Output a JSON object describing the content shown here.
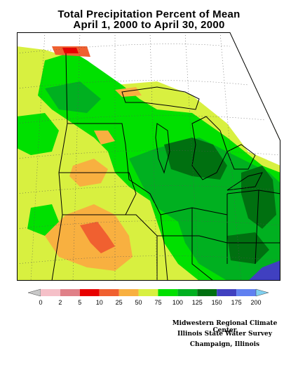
{
  "title": {
    "line1": "Total Precipitation Percent of Mean",
    "line2": "April 1, 2000 to April 30, 2000"
  },
  "legend": {
    "labels": [
      "0",
      "2",
      "5",
      "10",
      "25",
      "50",
      "75",
      "100",
      "125",
      "150",
      "175",
      "200"
    ],
    "colors": [
      "#c8c8c8",
      "#f5c0c8",
      "#e08088",
      "#e80000",
      "#f06030",
      "#f8b040",
      "#d8f040",
      "#00e000",
      "#00b020",
      "#007010",
      "#4040c0",
      "#6080f0",
      "#80d0f0"
    ]
  },
  "colors": {
    "lt50": "#f8b040",
    "p50_75": "#d8f040",
    "p75_100": "#00e000",
    "p100_125": "#00b020",
    "p125_150": "#007010",
    "p150_175": "#4040c0",
    "p25_50": "#f06030",
    "p10_25": "#e80000",
    "nodata": "#ffffff"
  },
  "credits": {
    "line1": "Midwestern Regional Climate Center",
    "line2": "Illinois State Water Survey",
    "line3": "Champaign, Illinois"
  }
}
